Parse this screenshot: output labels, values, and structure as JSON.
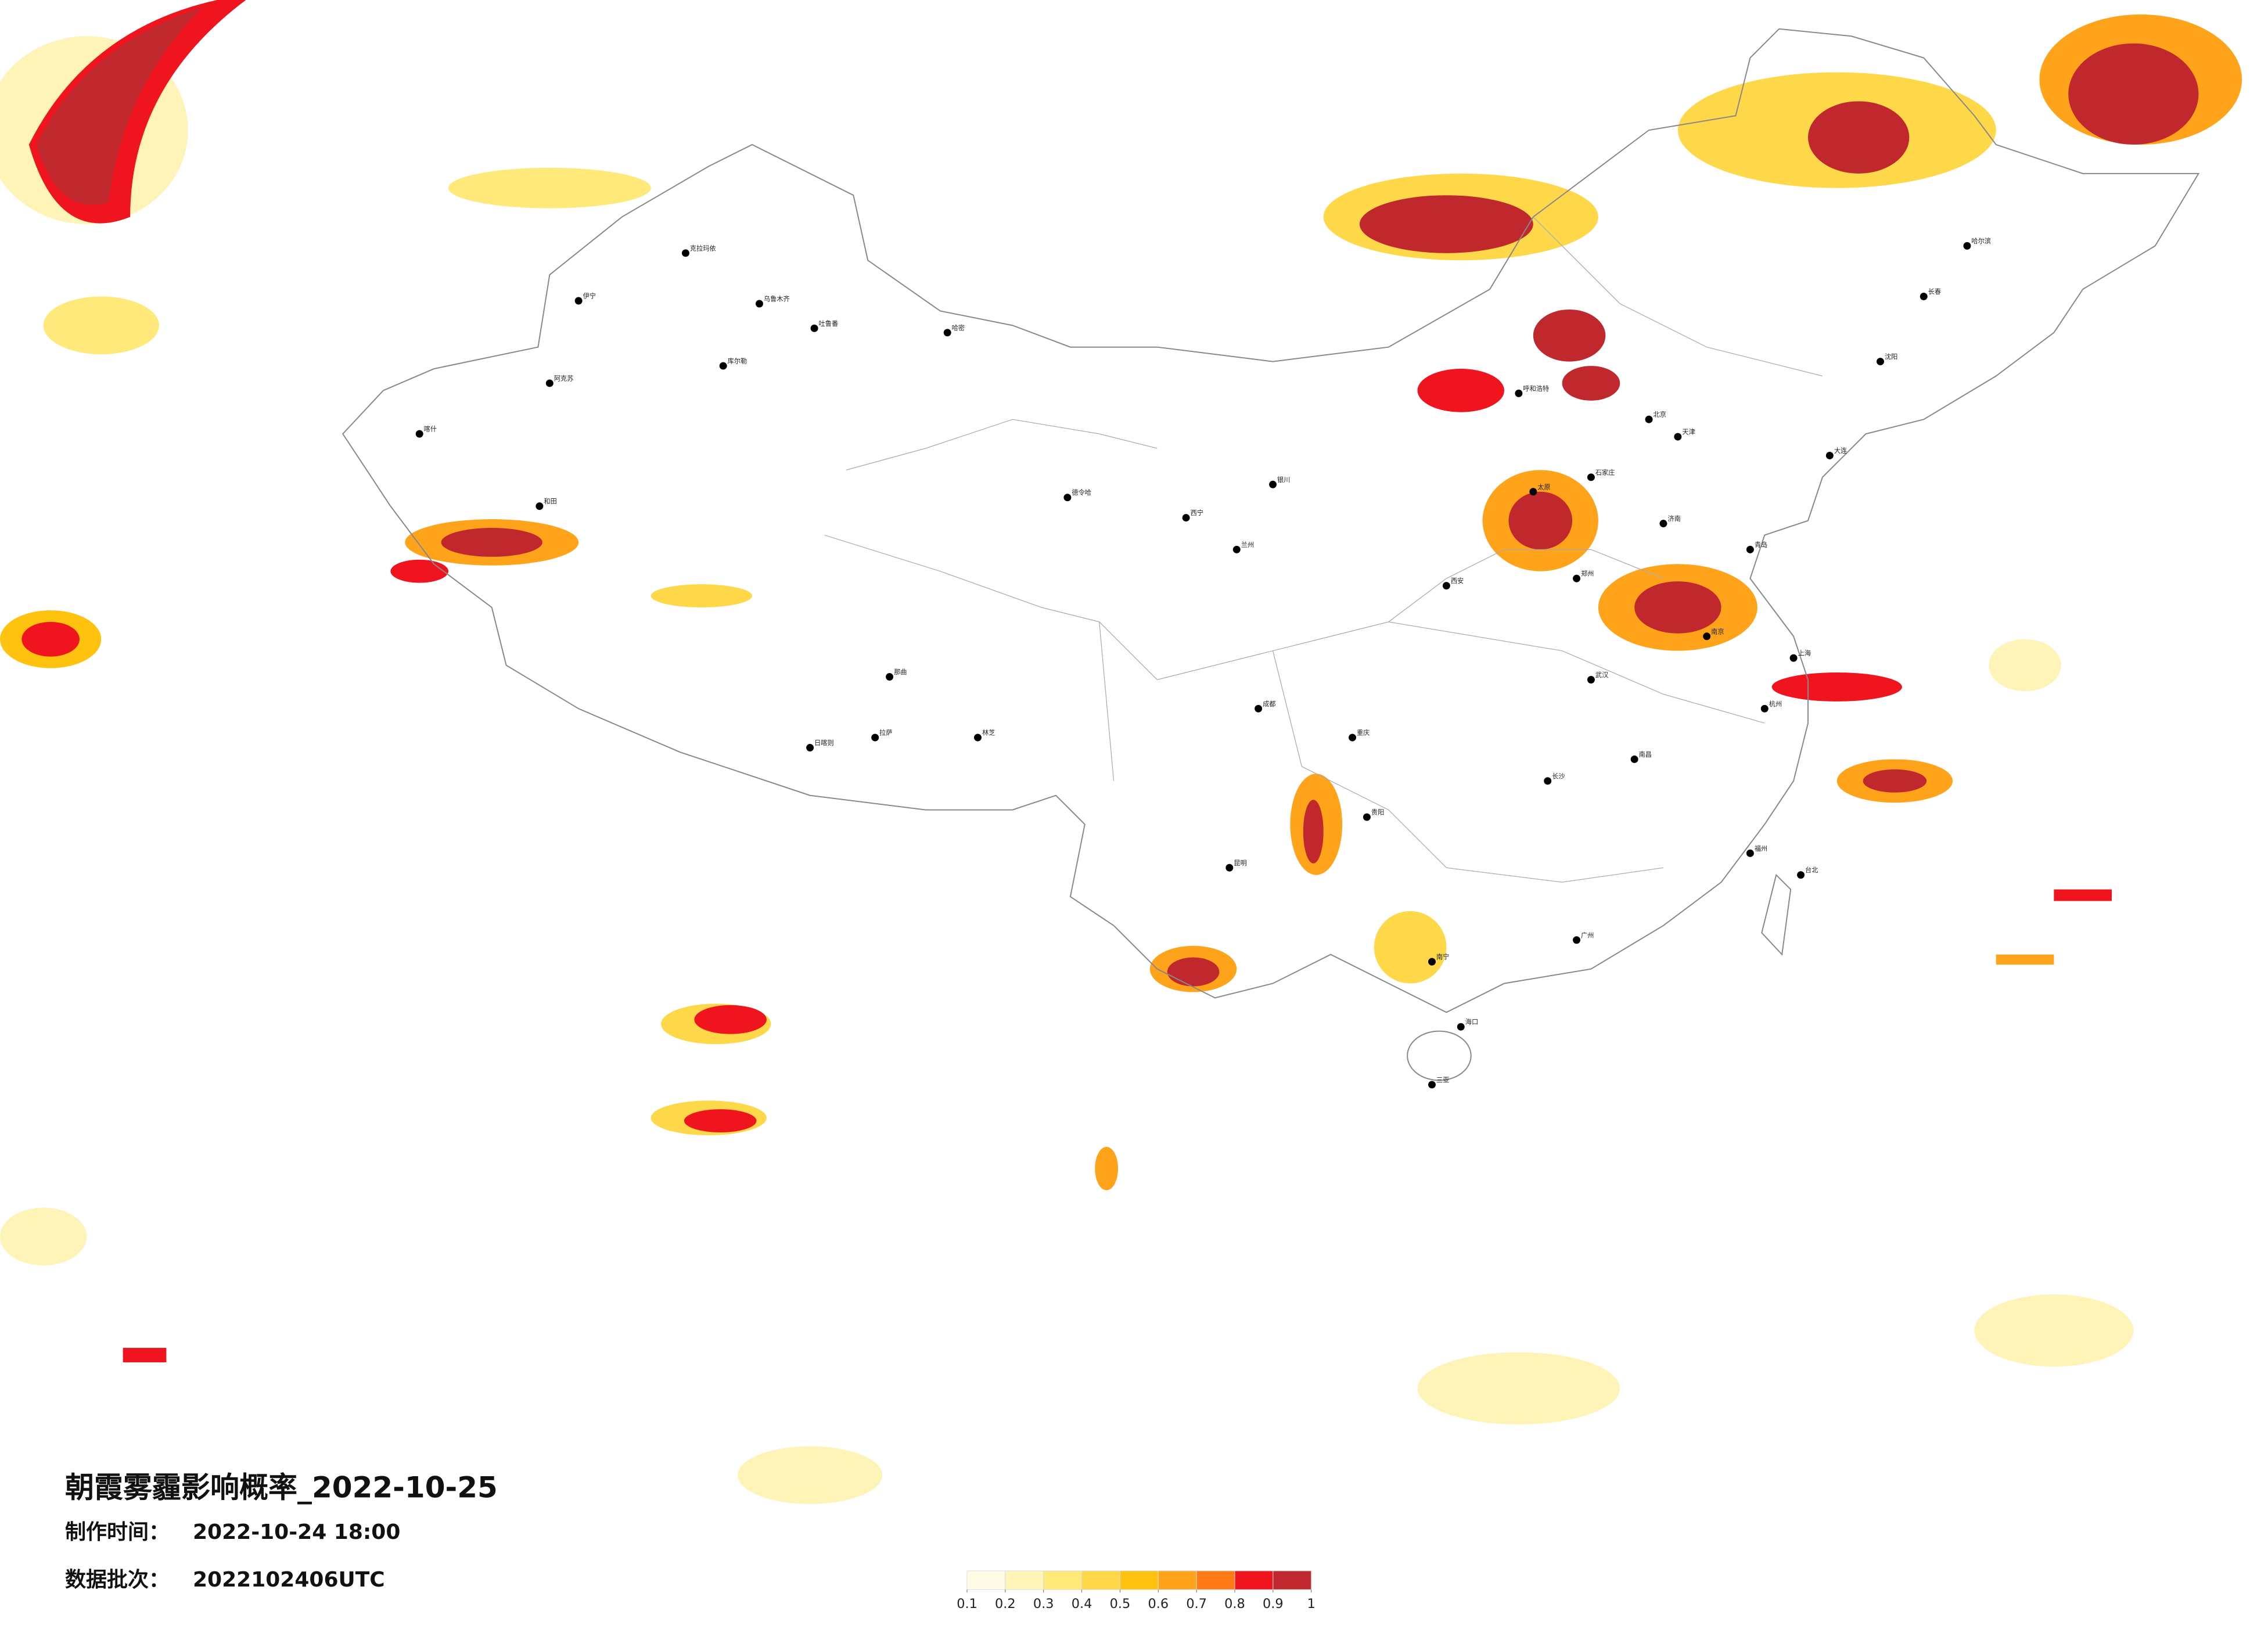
{
  "map": {
    "title": "朝霞雾霾影响概率_2022-10-25",
    "made_label": "制作时间：",
    "made_time": "2022-10-24 18:00",
    "batch_label": "数据批次：",
    "batch": "2022102406UTC",
    "legend": {
      "colors": [
        "#fffbe6",
        "#fff4b8",
        "#ffe97a",
        "#ffd84a",
        "#ffc20e",
        "#ffa31a",
        "#ff7a14",
        "#f0141e",
        "#c0282d"
      ],
      "ticks": [
        0.1,
        0.2,
        0.3,
        0.4,
        0.5,
        0.6,
        0.7,
        0.8,
        0.9,
        1
      ]
    },
    "cities": [
      "克拉玛依",
      "伊宁",
      "乌鲁木齐",
      "吐鲁番",
      "哈密",
      "库尔勒",
      "阿克苏",
      "喀什",
      "和田",
      "德令哈",
      "那曲",
      "拉萨",
      "日喀则",
      "林芝",
      "西宁",
      "兰州",
      "银川",
      "呼和浩特",
      "北京",
      "天津",
      "石家庄",
      "太原",
      "济南",
      "郑州",
      "西安",
      "成都",
      "重庆",
      "武汉",
      "长沙",
      "南京",
      "上海",
      "杭州",
      "南昌",
      "福州",
      "广州",
      "南宁",
      "昆明",
      "贵阳",
      "海口",
      "三亚",
      "哈尔滨",
      "长春",
      "沈阳",
      "大连",
      "青岛",
      "台北"
    ]
  }
}
